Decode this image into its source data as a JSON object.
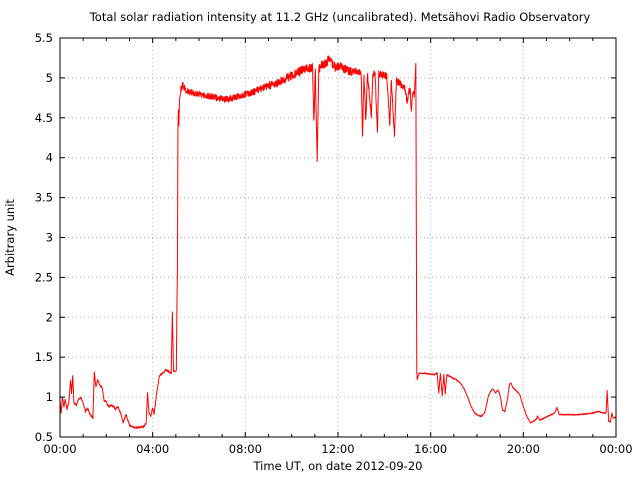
{
  "page": {
    "background_color": "#ffffff",
    "text_color": "#000000"
  },
  "chart_data": {
    "type": "line",
    "title": "Total solar radiation intensity at 11.2 GHz (uncalibrated). Metsähovi Radio Observatory",
    "xlabel": "Time UT, on date 2012-09-20",
    "ylabel": "Arbitrary unit",
    "xlim": [
      0,
      24
    ],
    "ylim": [
      0.5,
      5.5
    ],
    "grid": "dotted lines at major ticks",
    "legend": "none",
    "line_color": "#ff0000",
    "grid_color": "#b0b0b0",
    "border_color": "#000000",
    "x_major_ticks": [
      {
        "value": 0,
        "label": "00:00"
      },
      {
        "value": 4,
        "label": "04:00"
      },
      {
        "value": 8,
        "label": "08:00"
      },
      {
        "value": 12,
        "label": "12:00"
      },
      {
        "value": 16,
        "label": "16:00"
      },
      {
        "value": 20,
        "label": "20:00"
      },
      {
        "value": 24,
        "label": "00:00"
      }
    ],
    "x_minor_tick_interval": 1,
    "y_ticks": [
      {
        "value": 0.5,
        "label": "0.5"
      },
      {
        "value": 1,
        "label": "1"
      },
      {
        "value": 1.5,
        "label": "1.5"
      },
      {
        "value": 2,
        "label": "2"
      },
      {
        "value": 2.5,
        "label": "2.5"
      },
      {
        "value": 3,
        "label": "3"
      },
      {
        "value": 3.5,
        "label": "3.5"
      },
      {
        "value": 4,
        "label": "4"
      },
      {
        "value": 4.5,
        "label": "4.5"
      },
      {
        "value": 5,
        "label": "5"
      },
      {
        "value": 5.5,
        "label": "5.5"
      }
    ],
    "series": [
      {
        "name": "total solar radiation intensity (arbitrary units)",
        "points": [
          [
            0,
            0.95
          ],
          [
            0.05,
            0.8
          ],
          [
            0.1,
            1.0
          ],
          [
            0.17,
            0.88
          ],
          [
            0.22,
            0.97
          ],
          [
            0.3,
            0.85
          ],
          [
            0.38,
            0.93
          ],
          [
            0.42,
            1.05
          ],
          [
            0.45,
            1.22
          ],
          [
            0.5,
            1.05
          ],
          [
            0.55,
            1.28
          ],
          [
            0.6,
            0.93
          ],
          [
            0.7,
            0.9
          ],
          [
            0.8,
            0.97
          ],
          [
            0.9,
            1.0
          ],
          [
            1.0,
            0.92
          ],
          [
            1.1,
            0.82
          ],
          [
            1.2,
            0.86
          ],
          [
            1.3,
            0.78
          ],
          [
            1.42,
            0.74
          ],
          [
            1.48,
            1.31
          ],
          [
            1.55,
            1.13
          ],
          [
            1.62,
            1.22
          ],
          [
            1.72,
            1.15
          ],
          [
            1.82,
            1.12
          ],
          [
            1.9,
            0.96
          ],
          [
            2.0,
            0.94
          ],
          [
            2.1,
            0.88
          ],
          [
            2.25,
            0.9
          ],
          [
            2.4,
            0.85
          ],
          [
            2.5,
            0.88
          ],
          [
            2.62,
            0.8
          ],
          [
            2.72,
            0.68
          ],
          [
            2.85,
            0.78
          ],
          [
            3.0,
            0.65
          ],
          [
            3.15,
            0.62
          ],
          [
            3.4,
            0.62
          ],
          [
            3.6,
            0.63
          ],
          [
            3.72,
            0.68
          ],
          [
            3.78,
            1.06
          ],
          [
            3.84,
            0.8
          ],
          [
            3.92,
            0.76
          ],
          [
            4.0,
            0.87
          ],
          [
            4.06,
            0.78
          ],
          [
            4.16,
            1.02
          ],
          [
            4.28,
            1.26
          ],
          [
            4.42,
            1.3
          ],
          [
            4.56,
            1.34
          ],
          [
            4.7,
            1.32
          ],
          [
            4.8,
            1.3
          ],
          [
            4.85,
            2.07
          ],
          [
            4.9,
            1.33
          ],
          [
            4.97,
            1.32
          ],
          [
            5.02,
            1.33
          ],
          [
            5.05,
            2.2
          ],
          [
            5.07,
            2.62
          ],
          [
            5.09,
            4.35
          ],
          [
            5.11,
            4.6
          ],
          [
            5.13,
            4.4
          ],
          [
            5.16,
            4.72
          ],
          [
            5.22,
            4.86
          ],
          [
            5.3,
            4.93
          ],
          [
            5.4,
            4.85
          ],
          [
            5.55,
            4.83
          ],
          [
            5.75,
            4.81
          ],
          [
            6.0,
            4.8
          ],
          [
            6.3,
            4.78
          ],
          [
            6.6,
            4.76
          ],
          [
            6.9,
            4.74
          ],
          [
            7.2,
            4.73
          ],
          [
            7.5,
            4.75
          ],
          [
            7.8,
            4.78
          ],
          [
            8.1,
            4.8
          ],
          [
            8.4,
            4.83
          ],
          [
            8.7,
            4.87
          ],
          [
            9.0,
            4.9
          ],
          [
            9.3,
            4.92
          ],
          [
            9.6,
            4.96
          ],
          [
            9.9,
            5.02
          ],
          [
            10.2,
            5.06
          ],
          [
            10.5,
            5.1
          ],
          [
            10.7,
            5.12
          ],
          [
            10.9,
            5.14
          ],
          [
            10.96,
            4.42
          ],
          [
            11.02,
            5.12
          ],
          [
            11.1,
            3.97
          ],
          [
            11.17,
            5.1
          ],
          [
            11.3,
            5.16
          ],
          [
            11.45,
            5.18
          ],
          [
            11.6,
            5.23
          ],
          [
            11.75,
            5.18
          ],
          [
            11.9,
            5.13
          ],
          [
            12.05,
            5.15
          ],
          [
            12.2,
            5.12
          ],
          [
            12.4,
            5.1
          ],
          [
            12.6,
            5.08
          ],
          [
            12.8,
            5.08
          ],
          [
            13.0,
            5.06
          ],
          [
            13.06,
            4.25
          ],
          [
            13.12,
            5.05
          ],
          [
            13.2,
            4.45
          ],
          [
            13.27,
            5.05
          ],
          [
            13.44,
            4.5
          ],
          [
            13.5,
            5.05
          ],
          [
            13.6,
            5.06
          ],
          [
            13.7,
            4.3
          ],
          [
            13.76,
            5.05
          ],
          [
            13.9,
            5.04
          ],
          [
            14.1,
            5.02
          ],
          [
            14.24,
            4.4
          ],
          [
            14.3,
            5.0
          ],
          [
            14.44,
            4.25
          ],
          [
            14.52,
            4.97
          ],
          [
            14.7,
            4.92
          ],
          [
            14.9,
            4.86
          ],
          [
            15.0,
            4.68
          ],
          [
            15.05,
            4.85
          ],
          [
            15.12,
            4.82
          ],
          [
            15.17,
            4.55
          ],
          [
            15.22,
            4.82
          ],
          [
            15.3,
            4.8
          ],
          [
            15.36,
            5.18
          ],
          [
            15.4,
            1.32
          ],
          [
            15.42,
            1.22
          ],
          [
            15.5,
            1.3
          ],
          [
            15.7,
            1.3
          ],
          [
            15.95,
            1.29
          ],
          [
            16.15,
            1.28
          ],
          [
            16.28,
            1.3
          ],
          [
            16.35,
            1.05
          ],
          [
            16.42,
            1.3
          ],
          [
            16.5,
            1.02
          ],
          [
            16.57,
            1.28
          ],
          [
            16.63,
            1.04
          ],
          [
            16.7,
            1.28
          ],
          [
            16.82,
            1.26
          ],
          [
            16.95,
            1.24
          ],
          [
            17.1,
            1.22
          ],
          [
            17.3,
            1.17
          ],
          [
            17.45,
            1.1
          ],
          [
            17.6,
            1.0
          ],
          [
            17.75,
            0.88
          ],
          [
            17.9,
            0.8
          ],
          [
            18.05,
            0.77
          ],
          [
            18.2,
            0.76
          ],
          [
            18.35,
            0.82
          ],
          [
            18.5,
            1.02
          ],
          [
            18.6,
            1.08
          ],
          [
            18.7,
            1.1
          ],
          [
            18.8,
            1.05
          ],
          [
            18.9,
            1.09
          ],
          [
            19.0,
            1.02
          ],
          [
            19.1,
            0.84
          ],
          [
            19.2,
            0.82
          ],
          [
            19.3,
            0.95
          ],
          [
            19.4,
            1.16
          ],
          [
            19.45,
            1.18
          ],
          [
            19.55,
            1.12
          ],
          [
            19.7,
            1.08
          ],
          [
            19.85,
            1.03
          ],
          [
            20.0,
            0.88
          ],
          [
            20.15,
            0.76
          ],
          [
            20.3,
            0.68
          ],
          [
            20.45,
            0.7
          ],
          [
            20.55,
            0.72
          ],
          [
            20.62,
            0.76
          ],
          [
            20.7,
            0.71
          ],
          [
            20.85,
            0.73
          ],
          [
            21.0,
            0.75
          ],
          [
            21.2,
            0.78
          ],
          [
            21.35,
            0.8
          ],
          [
            21.45,
            0.87
          ],
          [
            21.55,
            0.78
          ],
          [
            21.8,
            0.78
          ],
          [
            22.1,
            0.78
          ],
          [
            22.4,
            0.78
          ],
          [
            22.7,
            0.79
          ],
          [
            23.0,
            0.8
          ],
          [
            23.25,
            0.82
          ],
          [
            23.45,
            0.8
          ],
          [
            23.57,
            0.8
          ],
          [
            23.62,
            1.08
          ],
          [
            23.68,
            0.7
          ],
          [
            23.75,
            0.68
          ],
          [
            23.82,
            0.8
          ],
          [
            23.88,
            0.74
          ],
          [
            24,
            0.75
          ]
        ],
        "noise_bands": [
          {
            "from": 0.0,
            "to": 4.95,
            "amp": 0.012
          },
          {
            "from": 5.2,
            "to": 9.0,
            "amp": 0.04
          },
          {
            "from": 9.0,
            "to": 12.6,
            "amp": 0.055
          },
          {
            "from": 12.6,
            "to": 15.32,
            "amp": 0.045
          },
          {
            "from": 15.5,
            "to": 24.0,
            "amp": 0.007
          }
        ],
        "noise_seed": 11
      }
    ]
  }
}
